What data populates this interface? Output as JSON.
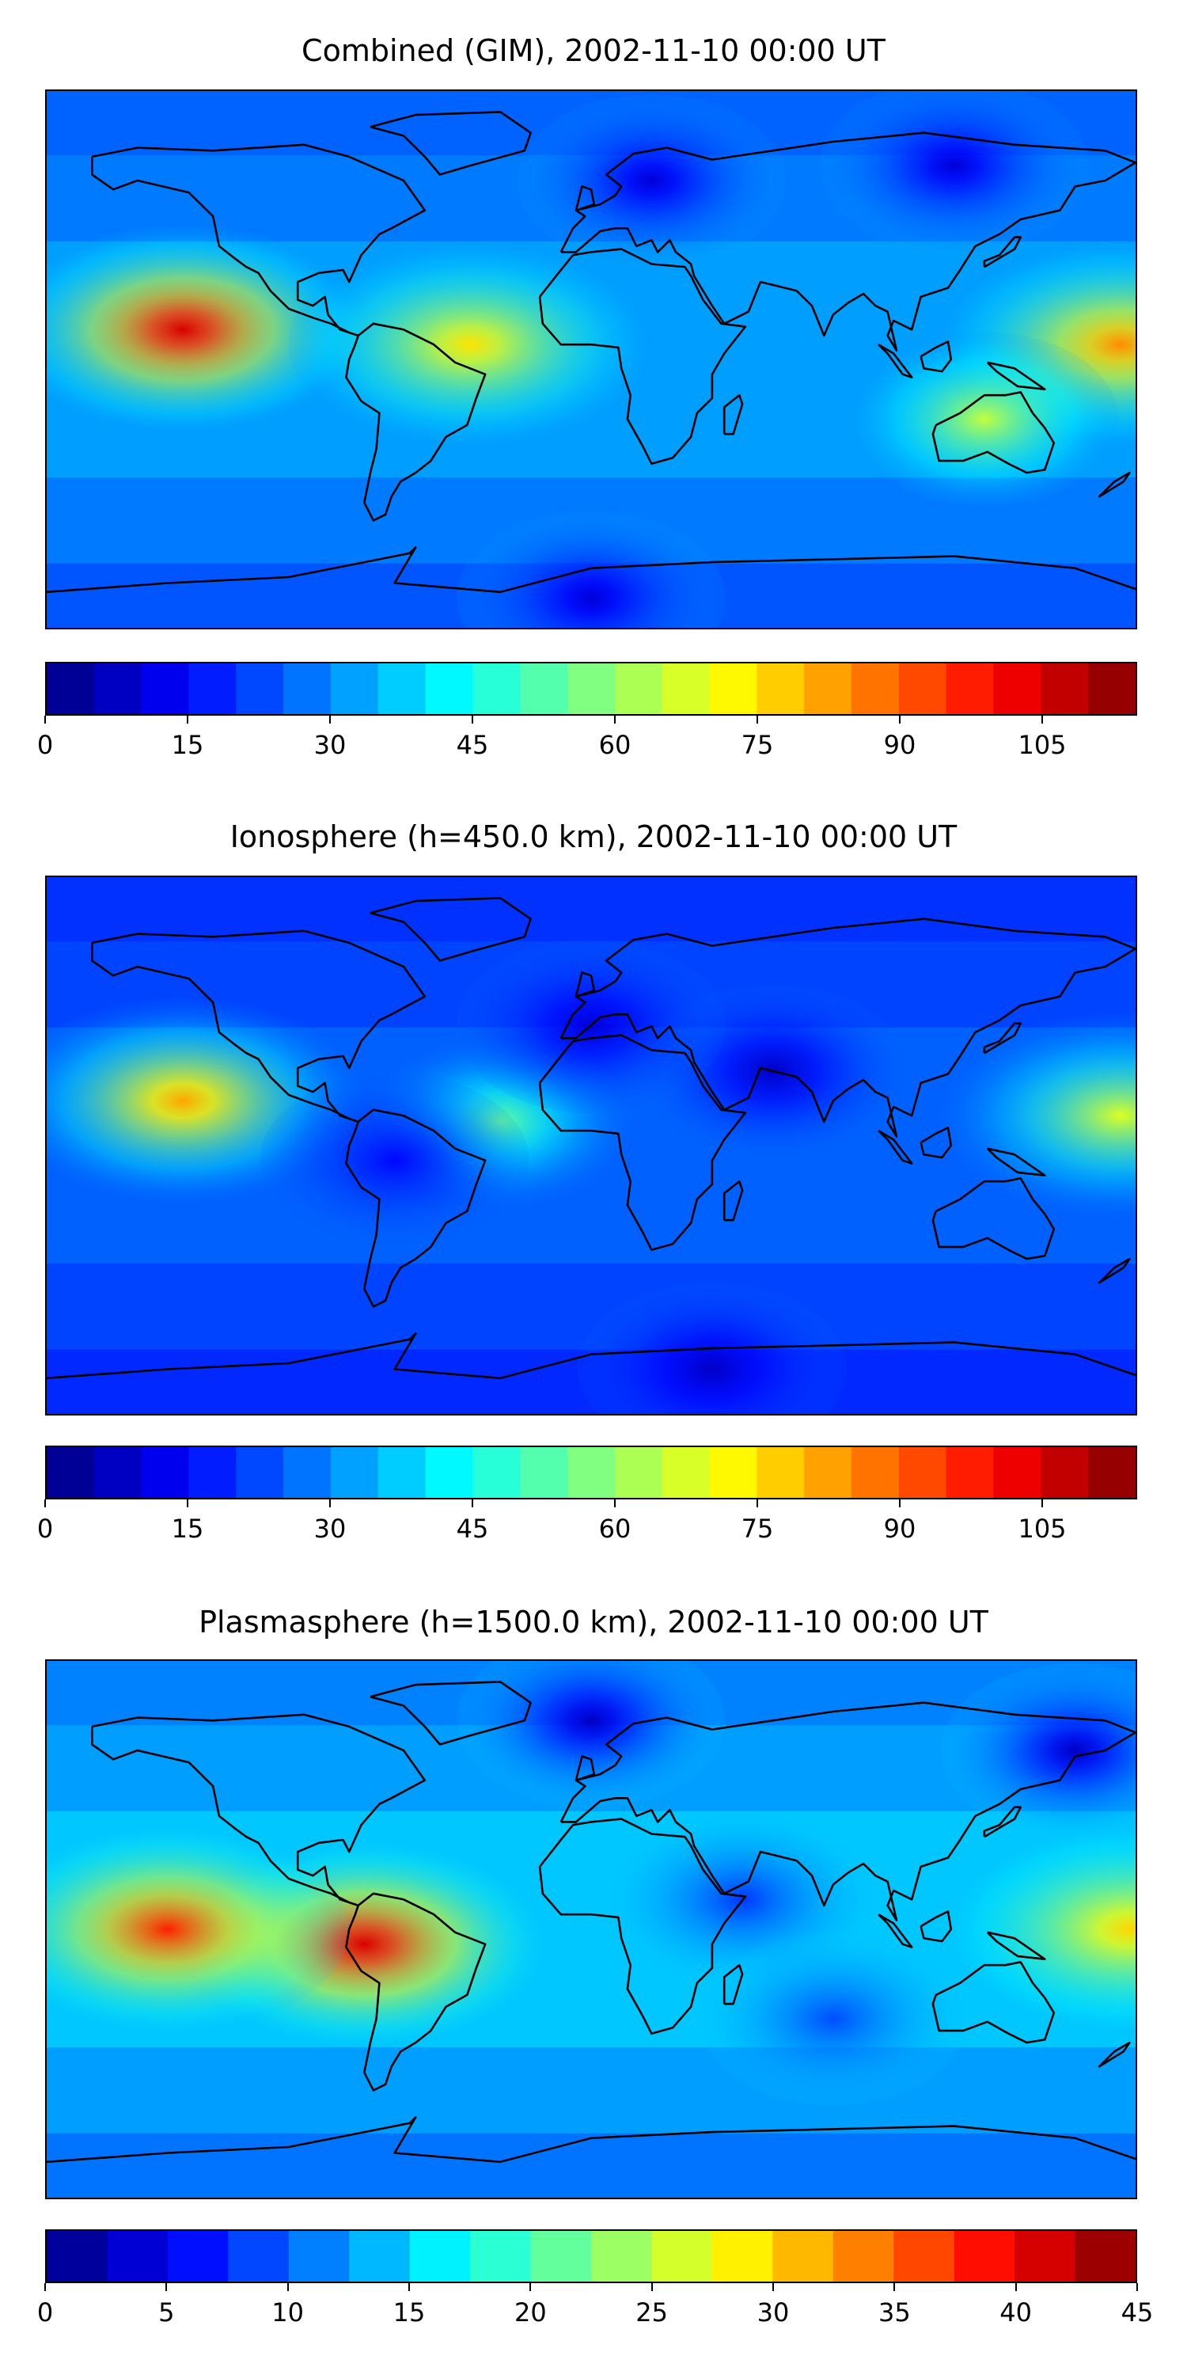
{
  "chart_data": [
    {
      "type": "heatmap",
      "title": "Combined (GIM), 2002-11-10 00:00 UT",
      "xlabel": "",
      "ylabel": "",
      "projection": "global map with coastlines",
      "grid": false,
      "colormap": "jet",
      "levels": [
        0,
        5,
        10,
        15,
        20,
        25,
        30,
        35,
        40,
        45,
        50,
        55,
        60,
        65,
        70,
        75,
        80,
        85,
        90,
        95,
        100,
        105,
        110,
        115
      ],
      "colorbar_ticks": [
        0,
        15,
        30,
        45,
        60,
        75,
        90,
        105
      ],
      "colorbar_range": [
        0,
        115
      ],
      "colorbar_tick_labels": [
        "0",
        "15",
        "30",
        "45",
        "60",
        "75",
        "90",
        "105"
      ],
      "features": [
        {
          "lon": -135,
          "lat": 10,
          "value": 105
        },
        {
          "lon": 175,
          "lat": 5,
          "value": 85
        },
        {
          "lon": -40,
          "lat": 5,
          "value": 75
        },
        {
          "lon": 130,
          "lat": -20,
          "value": 65
        },
        {
          "lon": 20,
          "lat": 60,
          "value": 10
        },
        {
          "lon": 120,
          "lat": 65,
          "value": 10
        },
        {
          "lon": 0,
          "lat": -80,
          "value": 10
        }
      ]
    },
    {
      "type": "heatmap",
      "title": "Ionosphere  (h=450.0 km), 2002-11-10 00:00 UT",
      "xlabel": "",
      "ylabel": "",
      "projection": "global map with coastlines",
      "grid": false,
      "colormap": "jet",
      "levels": [
        0,
        5,
        10,
        15,
        20,
        25,
        30,
        35,
        40,
        45,
        50,
        55,
        60,
        65,
        70,
        75,
        80,
        85,
        90,
        95,
        100,
        105,
        110,
        115
      ],
      "colorbar_ticks": [
        0,
        15,
        30,
        45,
        60,
        75,
        90,
        105
      ],
      "colorbar_range": [
        0,
        115
      ],
      "colorbar_tick_labels": [
        "0",
        "15",
        "30",
        "45",
        "60",
        "75",
        "90",
        "105"
      ],
      "features": [
        {
          "lon": -135,
          "lat": 15,
          "value": 82
        },
        {
          "lon": 175,
          "lat": 10,
          "value": 68
        },
        {
          "lon": -30,
          "lat": 8,
          "value": 55
        },
        {
          "lon": -65,
          "lat": -5,
          "value": 15
        },
        {
          "lon": 60,
          "lat": 25,
          "value": 8
        },
        {
          "lon": 0,
          "lat": 40,
          "value": 10
        },
        {
          "lon": 40,
          "lat": -75,
          "value": 8
        }
      ]
    },
    {
      "type": "heatmap",
      "title": "Plasmasphere (h=1500.0 km), 2002-11-10 00:00 UT",
      "xlabel": "",
      "ylabel": "",
      "projection": "global map with coastlines",
      "grid": false,
      "colormap": "jet",
      "levels": [
        0,
        2.5,
        5,
        7.5,
        10,
        12.5,
        15,
        17.5,
        20,
        22.5,
        25,
        27.5,
        30,
        32.5,
        35,
        37.5,
        40,
        42.5,
        45
      ],
      "colorbar_ticks": [
        0,
        5,
        10,
        15,
        20,
        25,
        30,
        35,
        40,
        45
      ],
      "colorbar_range": [
        0,
        45
      ],
      "colorbar_tick_labels": [
        "0",
        "5",
        "10",
        "15",
        "20",
        "25",
        "30",
        "35",
        "40",
        "45"
      ],
      "features": [
        {
          "lon": -75,
          "lat": -5,
          "value": 41
        },
        {
          "lon": -140,
          "lat": 0,
          "value": 38
        },
        {
          "lon": 178,
          "lat": 0,
          "value": 30
        },
        {
          "lon": 0,
          "lat": 70,
          "value": 3
        },
        {
          "lon": 160,
          "lat": 60,
          "value": 3
        },
        {
          "lon": 50,
          "lat": 10,
          "value": 8
        },
        {
          "lon": 80,
          "lat": -30,
          "value": 9
        }
      ]
    }
  ]
}
